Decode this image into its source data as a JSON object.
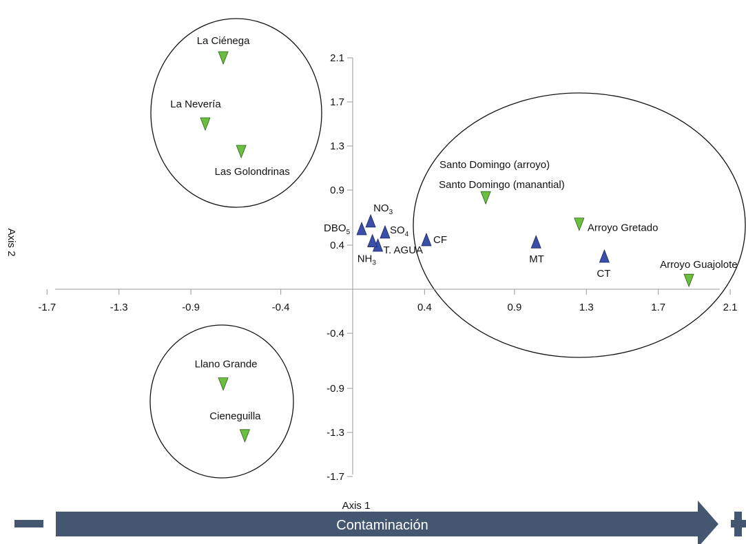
{
  "chart_data": {
    "type": "scatter",
    "xlabel": "Axis 1",
    "ylabel": "Axis 2",
    "xlim": [
      -1.7,
      2.1
    ],
    "ylim": [
      -1.7,
      2.1
    ],
    "x_ticks": [
      "-1.7",
      "-1.3",
      "-0.9",
      "-0.4",
      "0.4",
      "0.9",
      "1.3",
      "1.7",
      "2.1"
    ],
    "y_ticks": [
      "2.1",
      "1.7",
      "1.3",
      "0.9",
      "0.4",
      "-0.4",
      "-0.9",
      "-1.3",
      "-1.7"
    ],
    "grid": false,
    "colors": {
      "sites": "#6abf3f",
      "variables": "#3a4fa8",
      "arrow": "#445670"
    },
    "sites": [
      {
        "label": "La Ciénega",
        "x": -0.72,
        "y": 2.1
      },
      {
        "label": "La Nevería",
        "x": -0.82,
        "y": 1.5
      },
      {
        "label": "Las Golondrinas",
        "x": -0.62,
        "y": 1.25
      },
      {
        "label": "Llano Grande",
        "x": -0.72,
        "y": -0.86
      },
      {
        "label": "Cieneguilla",
        "x": -0.6,
        "y": -1.33
      },
      {
        "label": "Santo Domingo (manantial)",
        "x": 0.74,
        "y": 0.83
      },
      {
        "label": "Arroyo Gretado",
        "x": 1.26,
        "y": 0.59
      },
      {
        "label": "Arroyo Guajolote",
        "x": 1.87,
        "y": 0.08
      }
    ],
    "sites_extra_labels": [
      "Santo Domingo (arroyo)"
    ],
    "variables": [
      {
        "label": "DBO",
        "sub": "5",
        "x": 0.05,
        "y": 0.55
      },
      {
        "label": "NO",
        "sub": "3",
        "x": 0.1,
        "y": 0.62
      },
      {
        "label": "SO",
        "sub": "4",
        "x": 0.18,
        "y": 0.52
      },
      {
        "label": "T. AGUA",
        "sub": "",
        "x": 0.14,
        "y": 0.4
      },
      {
        "label": "NH",
        "sub": "3",
        "x": 0.11,
        "y": 0.44
      },
      {
        "label": "CF",
        "sub": "",
        "x": 0.41,
        "y": 0.45
      },
      {
        "label": "MT",
        "sub": "",
        "x": 1.02,
        "y": 0.43
      },
      {
        "label": "CT",
        "sub": "",
        "x": 1.4,
        "y": 0.3
      }
    ],
    "groups": [
      {
        "members": [
          "La Ciénega",
          "La Nevería",
          "Las Golondrinas"
        ]
      },
      {
        "members": [
          "Llano Grande",
          "Cieneguilla"
        ]
      },
      {
        "members": [
          "Santo Domingo (arroyo)",
          "Santo Domingo (manantial)",
          "Arroyo Gretado",
          "Arroyo Guajolote",
          "CF",
          "MT",
          "CT"
        ]
      }
    ]
  },
  "arrow": {
    "label": "Contaminación",
    "minus": "−",
    "plus": "+"
  }
}
